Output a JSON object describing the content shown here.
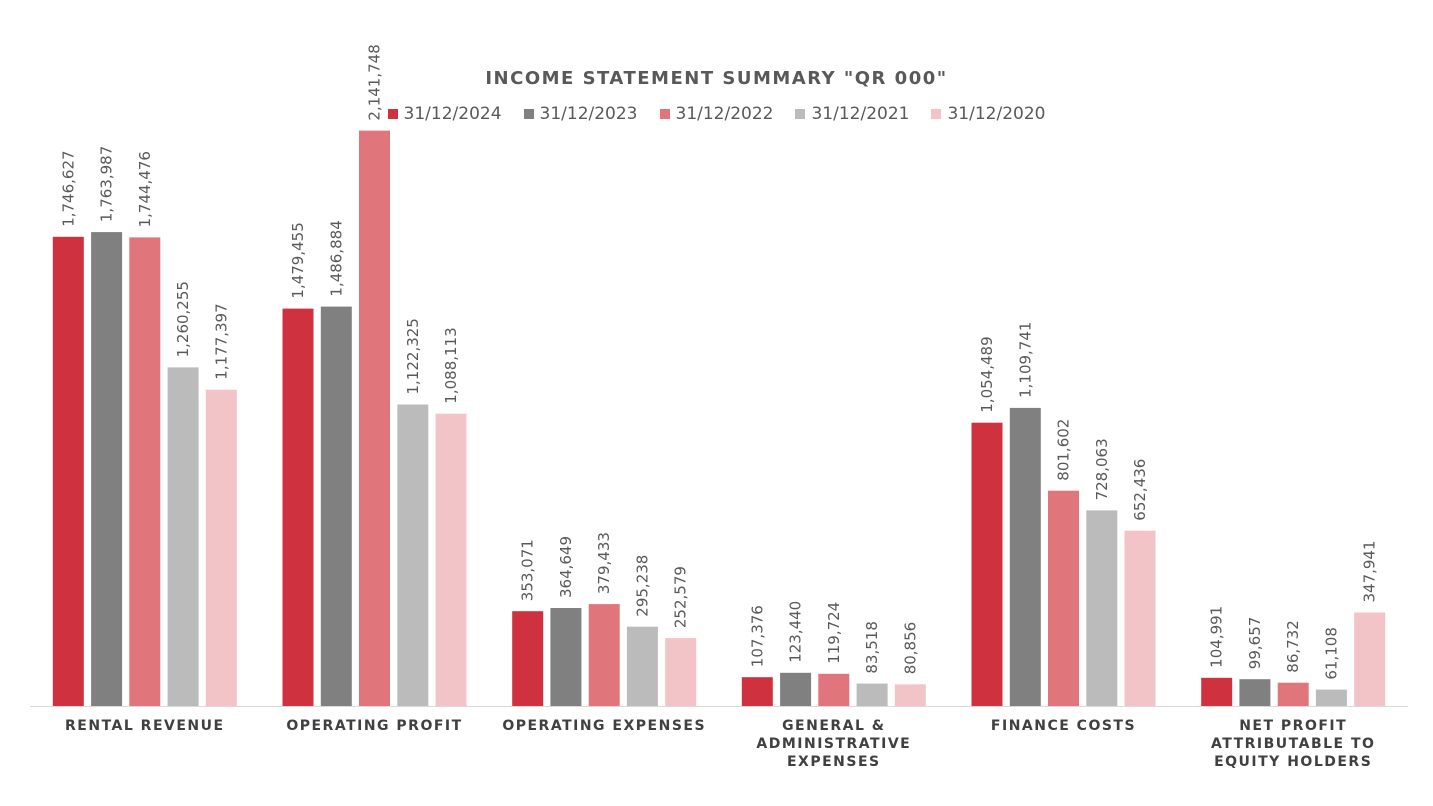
{
  "chart_data": {
    "type": "bar",
    "title": "INCOME STATEMENT SUMMARY \"QR 000\"",
    "categories": [
      [
        "RENTAL REVENUE"
      ],
      [
        "OPERATING PROFIT"
      ],
      [
        "OPERATING EXPENSES"
      ],
      [
        "GENERAL &",
        "ADMINISTRATIVE",
        "EXPENSES"
      ],
      [
        "FINANCE COSTS"
      ],
      [
        "NET PROFIT",
        "ATTRIBUTABLE TO",
        "EQUITY HOLDERS"
      ]
    ],
    "series": [
      {
        "name": "31/12/2024",
        "color": "#D0313E",
        "values": [
          1746627,
          1479455,
          353071,
          107376,
          1054489,
          104991
        ],
        "labels": [
          "1,746,627",
          "1,479,455",
          "353,071",
          "107,376",
          "1,054,489",
          "104,991"
        ]
      },
      {
        "name": "31/12/2023",
        "color": "#808080",
        "values": [
          1763987,
          1486884,
          364649,
          123440,
          1109741,
          99657
        ],
        "labels": [
          "1,763,987",
          "1,486,884",
          "364,649",
          "123,440",
          "1,109,741",
          "99,657"
        ]
      },
      {
        "name": "31/12/2022",
        "color": "#E0767C",
        "values": [
          1744476,
          2141748,
          379433,
          119724,
          801602,
          86732
        ],
        "labels": [
          "1,744,476",
          "2,141,748",
          "379,433",
          "119,724",
          "801,602",
          "86,732"
        ]
      },
      {
        "name": "31/12/2021",
        "color": "#BBBBBB",
        "values": [
          1260255,
          1122325,
          295238,
          83518,
          728063,
          61108
        ],
        "labels": [
          "1,260,255",
          "1,122,325",
          "295,238",
          "83,518",
          "728,063",
          "61,108"
        ]
      },
      {
        "name": "31/12/2020",
        "color": "#F2C4C7",
        "values": [
          1177397,
          1088113,
          252579,
          80856,
          652436,
          347941
        ],
        "labels": [
          "1,177,397",
          "1,088,113",
          "252,579",
          "80,856",
          "652,436",
          "347,941"
        ]
      }
    ],
    "ylim": [
      0,
      2200000
    ],
    "grid": false,
    "legend_position": "top",
    "axis_color": "#D9D9D9",
    "label_color": "#595959"
  }
}
